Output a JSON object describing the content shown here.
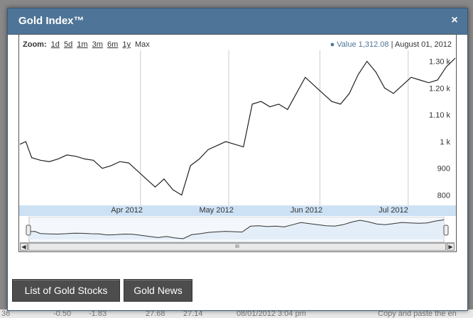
{
  "dialog": {
    "title": "Gold Index™",
    "close_label": "×"
  },
  "toolbar": {
    "zoom_label": "Zoom:",
    "zoom_options": [
      "1d",
      "5d",
      "1m",
      "3m",
      "6m",
      "1y",
      "Max"
    ],
    "value_label": "Value",
    "value": "1,312.08",
    "separator": "|",
    "date": "August 01, 2012"
  },
  "chart_data": {
    "type": "line",
    "series": [
      {
        "name": "Value",
        "x": [
          "2012-03-06",
          "2012-03-08",
          "2012-03-10",
          "2012-03-13",
          "2012-03-16",
          "2012-03-19",
          "2012-03-22",
          "2012-03-25",
          "2012-03-28",
          "2012-03-31",
          "2012-04-03",
          "2012-04-06",
          "2012-04-09",
          "2012-04-12",
          "2012-04-15",
          "2012-04-18",
          "2012-04-21",
          "2012-04-24",
          "2012-04-27",
          "2012-04-30",
          "2012-05-03",
          "2012-05-06",
          "2012-05-09",
          "2012-05-12",
          "2012-05-15",
          "2012-05-18",
          "2012-05-21",
          "2012-05-24",
          "2012-05-27",
          "2012-05-30",
          "2012-06-02",
          "2012-06-05",
          "2012-06-08",
          "2012-06-11",
          "2012-06-14",
          "2012-06-17",
          "2012-06-20",
          "2012-06-23",
          "2012-06-26",
          "2012-06-29",
          "2012-07-02",
          "2012-07-05",
          "2012-07-08",
          "2012-07-11",
          "2012-07-14",
          "2012-07-17",
          "2012-07-20",
          "2012-07-23",
          "2012-07-26",
          "2012-07-29",
          "2012-08-01"
        ],
        "values": [
          990,
          1000,
          940,
          930,
          925,
          935,
          950,
          945,
          935,
          930,
          900,
          910,
          925,
          920,
          890,
          860,
          830,
          860,
          820,
          800,
          910,
          935,
          970,
          985,
          1000,
          990,
          980,
          1140,
          1150,
          1130,
          1140,
          1120,
          1180,
          1240,
          1210,
          1180,
          1150,
          1140,
          1180,
          1250,
          1300,
          1260,
          1200,
          1180,
          1210,
          1240,
          1230,
          1220,
          1230,
          1280,
          1312.08
        ]
      }
    ],
    "y_ticks": [
      "800",
      "900",
      "1 k",
      "1.10 k",
      "1.20 k",
      "1.30 k"
    ],
    "ylim": [
      780,
      1320
    ],
    "x_ticks": [
      "Apr 2012",
      "May 2012",
      "Jun 2012",
      "Jul 2012"
    ],
    "x_range": [
      "2012-03-06",
      "2012-08-01"
    ],
    "grid": "vertical"
  },
  "scrollbar": {
    "left_arrow": "◀",
    "right_arrow": "▶",
    "grip": "III"
  },
  "buttons": {
    "gold_stocks": "List of Gold Stocks",
    "gold_news": "Gold News"
  },
  "background_row": [
    "36",
    "-0.50",
    "-1.83",
    "27.68",
    "27.14",
    "08/01/2012 3:04 pm",
    "Copy and paste the en"
  ]
}
